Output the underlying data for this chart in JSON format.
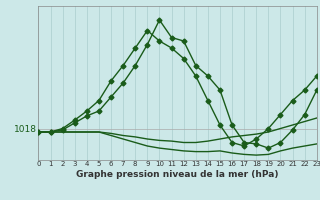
{
  "x": [
    0,
    1,
    2,
    3,
    4,
    5,
    6,
    7,
    8,
    9,
    10,
    11,
    12,
    13,
    14,
    15,
    16,
    17,
    18,
    19,
    20,
    21,
    22,
    23
  ],
  "line_marker1": [
    1017.5,
    1017.5,
    1018.0,
    1019.2,
    1020.5,
    1022.0,
    1024.8,
    1027.0,
    1029.5,
    1032.0,
    1030.5,
    1029.5,
    1028.0,
    1025.5,
    1022.0,
    1018.5,
    1016.0,
    1015.5,
    1016.5,
    1018.0,
    1020.0,
    1022.0,
    1023.5,
    1025.5
  ],
  "line_marker2": [
    1017.5,
    1017.5,
    1017.8,
    1018.8,
    1019.8,
    1020.5,
    1022.5,
    1024.5,
    1027.0,
    1030.0,
    1033.5,
    1031.0,
    1030.5,
    1027.0,
    1025.5,
    1023.5,
    1018.5,
    1016.0,
    1015.8,
    1015.2,
    1016.0,
    1017.8,
    1020.0,
    1023.5
  ],
  "line_plain1": [
    1017.5,
    1017.5,
    1017.5,
    1017.5,
    1017.5,
    1017.5,
    1017.3,
    1017.0,
    1016.8,
    1016.5,
    1016.3,
    1016.2,
    1016.0,
    1016.0,
    1016.2,
    1016.5,
    1016.8,
    1017.0,
    1017.2,
    1017.5,
    1018.0,
    1018.5,
    1019.0,
    1019.5
  ],
  "line_plain2": [
    1017.5,
    1017.5,
    1017.5,
    1017.5,
    1017.5,
    1017.5,
    1017.0,
    1016.5,
    1016.0,
    1015.5,
    1015.2,
    1015.0,
    1014.8,
    1014.7,
    1014.7,
    1014.8,
    1014.5,
    1014.3,
    1014.2,
    1014.3,
    1014.8,
    1015.2,
    1015.5,
    1015.8
  ],
  "bg_color": "#cce8e8",
  "line_color": "#1a5c1a",
  "grid_color_v": "#aacece",
  "grid_color_h": "#aaaaaa",
  "xlabel_text": "Graphe pression niveau de la mer (hPa)",
  "xtick_labels": [
    "0",
    "1",
    "2",
    "3",
    "4",
    "5",
    "6",
    "7",
    "8",
    "9",
    "10",
    "11",
    "12",
    "13",
    "14",
    "15",
    "16",
    "17",
    "18",
    "19",
    "20",
    "21",
    "22",
    "23"
  ],
  "ylim": [
    1013.5,
    1035.5
  ],
  "xlim": [
    0,
    23
  ],
  "ytick_value": 1018,
  "marker": "D",
  "markersize": 2.5,
  "linewidth": 1.0,
  "fontsize_xlabel": 6.5,
  "fontsize_ytick": 6.5,
  "fontsize_xtick": 5.0
}
